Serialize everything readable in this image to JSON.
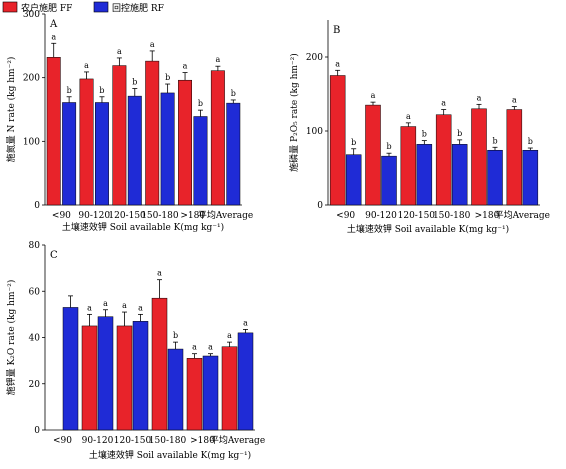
{
  "legend": {
    "items": [
      {
        "label": "农户施肥 FF",
        "color": "#e8232a"
      },
      {
        "label": "回控施肥 RF",
        "color": "#1f2bd6"
      }
    ]
  },
  "x_axis_title": "土壤速效钾 Soil available K(mg kg⁻¹)",
  "chart_data": [
    {
      "type": "bar",
      "panel": "A",
      "ylabel": "施氮量 N rate (kg hm⁻²)",
      "xlabel": "土壤速效钾 Soil available K(mg kg⁻¹)",
      "ylim": [
        0,
        300
      ],
      "yticks": [
        0,
        100,
        200,
        300
      ],
      "categories": [
        "<90",
        "90-120",
        "120-150",
        "150-180",
        ">180",
        "平均Average"
      ],
      "series": [
        {
          "name": "农户施肥 FF",
          "values": [
            232,
            198,
            219,
            226,
            196,
            211
          ],
          "errors": [
            22,
            11,
            12,
            16,
            12,
            7
          ],
          "labels": [
            "a",
            "a",
            "a",
            "a",
            "a",
            "a"
          ]
        },
        {
          "name": "回控施肥 RF",
          "values": [
            161,
            161,
            171,
            176,
            139,
            160
          ],
          "errors": [
            9,
            9,
            12,
            14,
            10,
            5
          ],
          "labels": [
            "b",
            "b",
            "b",
            "b",
            "b",
            "b"
          ]
        }
      ]
    },
    {
      "type": "bar",
      "panel": "B",
      "ylabel": "施磷量 P₂O₅ rate (kg hm⁻²)",
      "xlabel": "土壤速效钾 Soil available K(mg kg⁻¹)",
      "ylim": [
        0,
        250
      ],
      "yticks": [
        0,
        100,
        200
      ],
      "categories": [
        "<90",
        "90-120",
        "120-150",
        "150-180",
        ">180",
        "平均Average"
      ],
      "series": [
        {
          "name": "农户施肥 FF",
          "values": [
            175,
            135,
            106,
            122,
            130,
            129
          ],
          "errors": [
            7,
            4,
            5,
            7,
            6,
            4
          ],
          "labels": [
            "a",
            "a",
            "a",
            "a",
            "a",
            "a"
          ]
        },
        {
          "name": "回控施肥 RF",
          "values": [
            68,
            66,
            82,
            82,
            74,
            74
          ],
          "errors": [
            8,
            4,
            5,
            6,
            4,
            3
          ],
          "labels": [
            "b",
            "b",
            "b",
            "b",
            "b",
            "b"
          ]
        }
      ]
    },
    {
      "type": "bar",
      "panel": "C",
      "ylabel": "施钾量 K₂O rate (kg hm⁻²)",
      "xlabel": "土壤速效钾 Soil available K(mg kg⁻¹)",
      "ylim": [
        0,
        80
      ],
      "yticks": [
        0,
        20,
        40,
        60,
        80
      ],
      "categories": [
        "<90",
        "90-120",
        "120-150",
        "150-180",
        ">180",
        "平均Average"
      ],
      "series": [
        {
          "name": "农户施肥 FF",
          "values": [
            null,
            45,
            45,
            57,
            31,
            36
          ],
          "errors": [
            0,
            5,
            6,
            8,
            2,
            2
          ],
          "labels": [
            "",
            "a",
            "a",
            "a",
            "a",
            "a"
          ]
        },
        {
          "name": "回控施肥 RF",
          "values": [
            53,
            49,
            47,
            35,
            32,
            42
          ],
          "errors": [
            5,
            3,
            3,
            3,
            1,
            1.5
          ],
          "labels": [
            "",
            "a",
            "a",
            "b",
            "a",
            "a"
          ]
        }
      ]
    }
  ]
}
